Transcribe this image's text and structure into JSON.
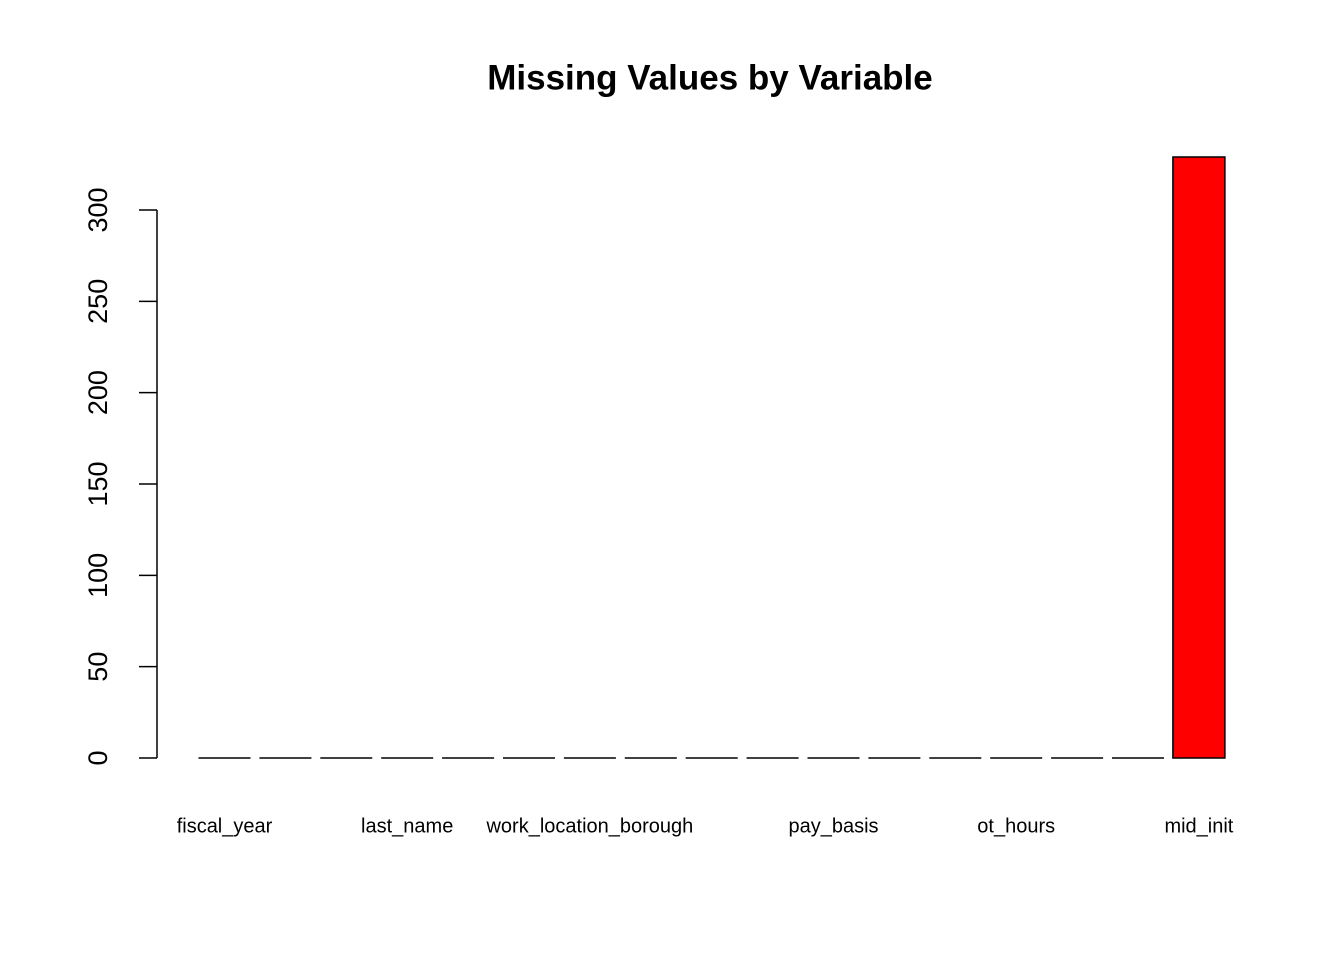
{
  "chart_data": {
    "type": "bar",
    "title": "Missing Values by Variable",
    "categories": [
      "fiscal_year",
      null,
      null,
      "last_name",
      null,
      null,
      "work_location_borough",
      null,
      null,
      null,
      "pay_basis",
      null,
      null,
      "ot_hours",
      null,
      null,
      "mid_init"
    ],
    "values": [
      0,
      0,
      0,
      0,
      0,
      0,
      0,
      0,
      0,
      0,
      0,
      0,
      0,
      0,
      0,
      0,
      329
    ],
    "color": "#ff0000",
    "ylim": [
      0,
      329
    ],
    "yticks": [
      0,
      50,
      100,
      150,
      200,
      250,
      300
    ],
    "grid": false
  }
}
